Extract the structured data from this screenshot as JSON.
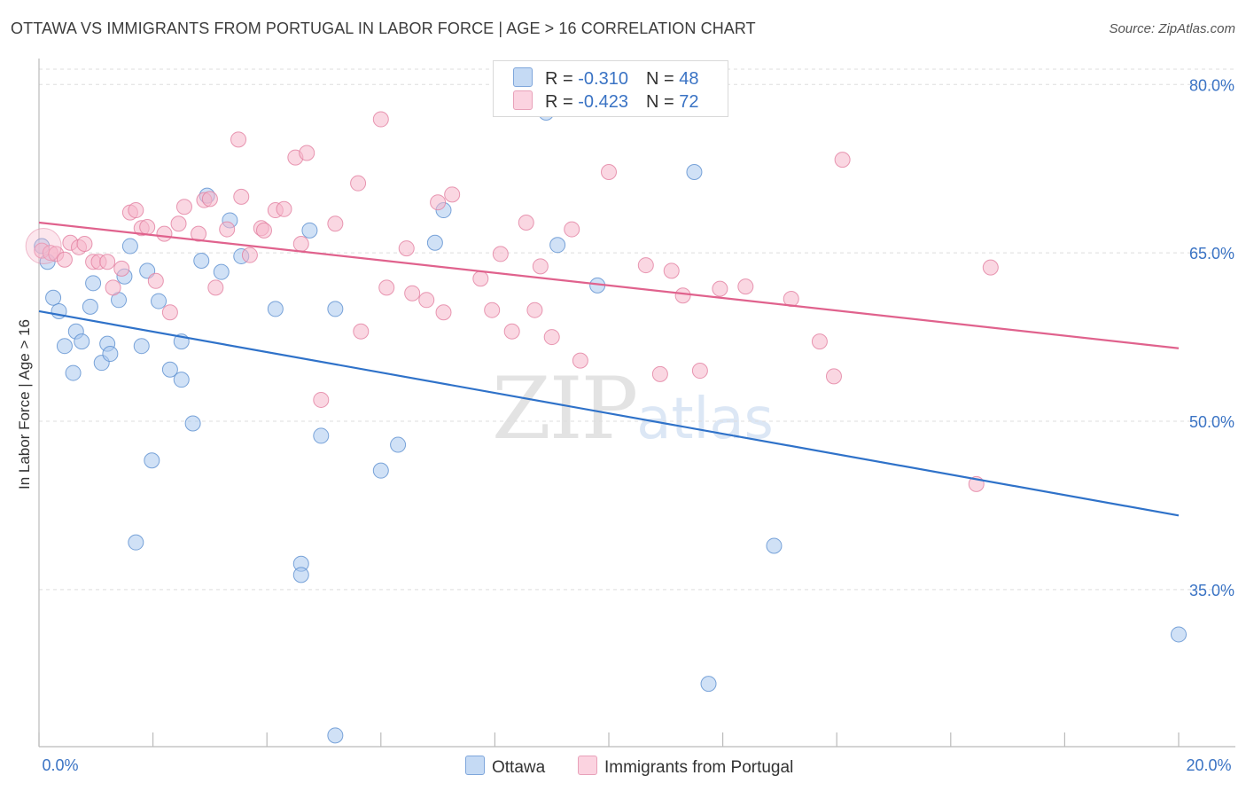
{
  "title": "OTTAWA VS IMMIGRANTS FROM PORTUGAL IN LABOR FORCE | AGE > 16 CORRELATION CHART",
  "source": "Source: ZipAtlas.com",
  "watermark": {
    "zip": "ZIP",
    "atlas": "atlas"
  },
  "legend_top": {
    "rows": [
      {
        "r_label": "R = ",
        "r_value": "-0.310",
        "n_label": "N = ",
        "n_value": "48",
        "color": "#aac8ee"
      },
      {
        "r_label": "R = ",
        "r_value": "-0.423",
        "n_label": "N = ",
        "n_value": "72",
        "color": "#f5b6cb"
      }
    ]
  },
  "legend_bottom": [
    "Ottawa",
    "Immigrants from Portugal"
  ],
  "chart_data": {
    "type": "scatter",
    "title": "OTTAWA VS IMMIGRANTS FROM PORTUGAL IN LABOR FORCE | AGE > 16 CORRELATION CHART",
    "xlabel": "",
    "ylabel": "In Labor Force | Age > 16",
    "xlim": [
      0,
      20
    ],
    "ylim": [
      21,
      82
    ],
    "x_tick_labels": [
      "0.0%",
      "20.0%"
    ],
    "y_ticks": [
      35,
      50,
      65,
      80
    ],
    "y_tick_labels": [
      "35.0%",
      "50.0%",
      "65.0%",
      "80.0%"
    ],
    "grid": true,
    "legend_position": "top-center",
    "series": [
      {
        "name": "Ottawa",
        "color": "#aac8ee",
        "stroke": "#5b8ed0",
        "trend_color": "#2f72c9",
        "trend": {
          "x": [
            0,
            20
          ],
          "y": [
            59.8,
            41.6
          ]
        },
        "points": [
          [
            0.05,
            65.6
          ],
          [
            0.15,
            64.2
          ],
          [
            0.25,
            61.0
          ],
          [
            0.35,
            59.8
          ],
          [
            0.45,
            56.7
          ],
          [
            0.6,
            54.3
          ],
          [
            0.65,
            58.0
          ],
          [
            0.75,
            57.1
          ],
          [
            0.9,
            60.2
          ],
          [
            0.95,
            62.3
          ],
          [
            1.1,
            55.2
          ],
          [
            1.2,
            56.9
          ],
          [
            1.25,
            56.0
          ],
          [
            1.4,
            60.8
          ],
          [
            1.5,
            62.9
          ],
          [
            1.6,
            65.6
          ],
          [
            1.7,
            39.2
          ],
          [
            1.8,
            56.7
          ],
          [
            1.9,
            63.4
          ],
          [
            1.98,
            46.5
          ],
          [
            2.1,
            60.7
          ],
          [
            2.3,
            54.6
          ],
          [
            2.5,
            57.1
          ],
          [
            2.5,
            53.7
          ],
          [
            2.7,
            49.8
          ],
          [
            2.85,
            64.3
          ],
          [
            2.95,
            70.1
          ],
          [
            3.2,
            63.3
          ],
          [
            3.35,
            67.9
          ],
          [
            3.55,
            64.7
          ],
          [
            4.15,
            60.0
          ],
          [
            4.6,
            37.3
          ],
          [
            4.6,
            36.3
          ],
          [
            4.75,
            67.0
          ],
          [
            4.95,
            48.7
          ],
          [
            5.2,
            60.0
          ],
          [
            5.2,
            22.0
          ],
          [
            6.0,
            45.6
          ],
          [
            6.3,
            47.9
          ],
          [
            6.95,
            65.9
          ],
          [
            7.1,
            68.8
          ],
          [
            8.9,
            77.5
          ],
          [
            9.1,
            65.7
          ],
          [
            9.8,
            62.1
          ],
          [
            11.5,
            72.2
          ],
          [
            11.75,
            26.6
          ],
          [
            12.9,
            38.9
          ],
          [
            20.0,
            31.0
          ]
        ]
      },
      {
        "name": "Immigrants from Portugal",
        "color": "#f5b6cb",
        "stroke": "#e27fa0",
        "trend_color": "#e0628d",
        "trend": {
          "x": [
            0,
            20
          ],
          "y": [
            67.7,
            56.5
          ]
        },
        "points": [
          [
            0.05,
            65.2
          ],
          [
            0.2,
            65.0
          ],
          [
            0.3,
            64.9
          ],
          [
            0.45,
            64.4
          ],
          [
            0.55,
            65.9
          ],
          [
            0.7,
            65.5
          ],
          [
            0.8,
            65.8
          ],
          [
            0.95,
            64.2
          ],
          [
            1.05,
            64.2
          ],
          [
            1.2,
            64.2
          ],
          [
            1.3,
            61.9
          ],
          [
            1.45,
            63.6
          ],
          [
            1.6,
            68.6
          ],
          [
            1.7,
            68.8
          ],
          [
            1.8,
            67.2
          ],
          [
            1.9,
            67.3
          ],
          [
            2.05,
            62.5
          ],
          [
            2.2,
            66.7
          ],
          [
            2.3,
            59.7
          ],
          [
            2.45,
            67.6
          ],
          [
            2.55,
            69.1
          ],
          [
            2.8,
            66.7
          ],
          [
            2.9,
            69.7
          ],
          [
            3.0,
            69.8
          ],
          [
            3.1,
            61.9
          ],
          [
            3.3,
            67.1
          ],
          [
            3.5,
            75.1
          ],
          [
            3.55,
            70.0
          ],
          [
            3.7,
            64.8
          ],
          [
            3.9,
            67.2
          ],
          [
            3.95,
            67.0
          ],
          [
            4.15,
            68.8
          ],
          [
            4.3,
            68.9
          ],
          [
            4.5,
            73.5
          ],
          [
            4.6,
            65.8
          ],
          [
            4.7,
            73.9
          ],
          [
            4.95,
            51.9
          ],
          [
            5.2,
            67.6
          ],
          [
            5.6,
            71.2
          ],
          [
            5.65,
            58.0
          ],
          [
            6.0,
            76.9
          ],
          [
            6.1,
            61.9
          ],
          [
            6.45,
            65.4
          ],
          [
            6.55,
            61.4
          ],
          [
            6.8,
            60.8
          ],
          [
            7.0,
            69.5
          ],
          [
            7.1,
            59.7
          ],
          [
            7.25,
            70.2
          ],
          [
            7.75,
            62.7
          ],
          [
            7.95,
            59.9
          ],
          [
            8.1,
            64.9
          ],
          [
            8.3,
            58.0
          ],
          [
            8.55,
            67.7
          ],
          [
            8.7,
            59.9
          ],
          [
            8.8,
            63.8
          ],
          [
            9.0,
            57.5
          ],
          [
            9.35,
            67.1
          ],
          [
            9.5,
            55.4
          ],
          [
            10.0,
            72.2
          ],
          [
            10.65,
            63.9
          ],
          [
            10.9,
            54.2
          ],
          [
            11.1,
            63.4
          ],
          [
            11.3,
            61.2
          ],
          [
            11.6,
            54.5
          ],
          [
            11.95,
            61.8
          ],
          [
            12.4,
            62.0
          ],
          [
            13.2,
            60.9
          ],
          [
            13.7,
            57.1
          ],
          [
            13.95,
            54.0
          ],
          [
            14.1,
            73.3
          ],
          [
            16.45,
            44.4
          ],
          [
            16.7,
            63.7
          ]
        ]
      }
    ]
  }
}
